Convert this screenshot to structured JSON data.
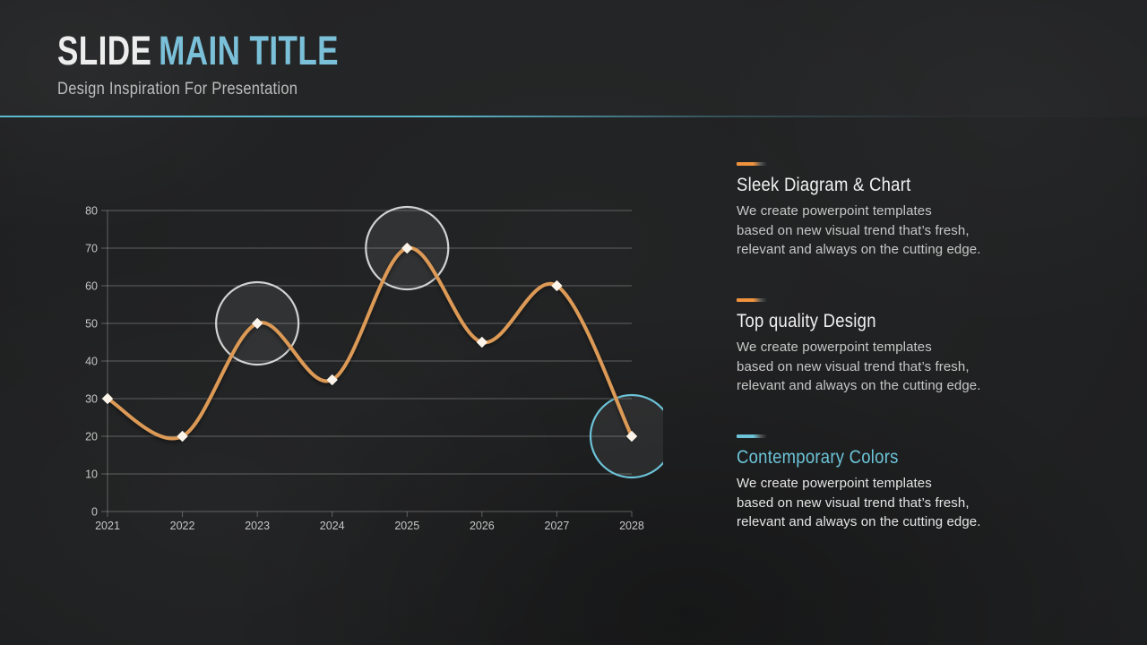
{
  "slide": {
    "header": {
      "title_primary": "SLIDE",
      "title_accent": "MAIN TITLE",
      "subtitle": "Design Inspiration For Presentation"
    },
    "cards": [
      {
        "title": "Sleek Diagram & Chart",
        "body": "We create powerpoint templates\nbased on new visual trend that’s fresh,\nrelevant and always on the cutting edge.",
        "accent_color": "#ef923e",
        "title_color": "#f1f1f1",
        "body_color": "#c7c7c7"
      },
      {
        "title": "Top quality Design",
        "body": "We create powerpoint templates\nbased on new visual trend that’s fresh,\nrelevant and always on the cutting edge.",
        "accent_color": "#ef923e",
        "title_color": "#f1f1f1",
        "body_color": "#c7c7c7"
      },
      {
        "title": "Contemporary Colors",
        "body": "We create powerpoint templates\nbased on new visual trend that’s fresh,\nrelevant and always on the cutting edge.",
        "accent_color": "#6cc3d8",
        "title_color": "#6cc3d8",
        "body_color": "#e5e5e5"
      }
    ],
    "colors": {
      "title_accent_blue": "#7bc0d9",
      "divider_teal": "#5cb9ce",
      "background": "#1d1e1f"
    }
  },
  "chart_data": {
    "type": "line",
    "categories": [
      "2021",
      "2022",
      "2023",
      "2024",
      "2025",
      "2026",
      "2027",
      "2028"
    ],
    "values": [
      30,
      20,
      50,
      35,
      70,
      45,
      60,
      20
    ],
    "title": "",
    "xlabel": "",
    "ylabel": "",
    "ylim": [
      0,
      80
    ],
    "ytick_step": 10,
    "grid": true,
    "legend": false,
    "line_color": "#dc9a57",
    "marker": {
      "shape": "diamond",
      "color": "#fbf4ea"
    },
    "axis_color": "#c6c6c6",
    "grid_color": "rgba(200,200,200,0.38)",
    "highlight_fill": "rgba(235,235,235,0.08)",
    "highlights": [
      {
        "category": "2023",
        "value": 50,
        "ring_color": "rgba(228,228,228,0.9)"
      },
      {
        "category": "2025",
        "value": 70,
        "ring_color": "rgba(228,228,228,0.9)"
      },
      {
        "category": "2028",
        "value": 20,
        "ring_color": "#6cc3d8"
      }
    ]
  }
}
